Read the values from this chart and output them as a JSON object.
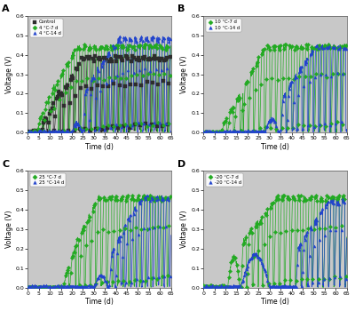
{
  "panels": [
    {
      "label": "A",
      "legend": [
        "Control",
        "4 °C-7 d",
        "4 °C-14 d"
      ],
      "colors": [
        "#2d2d2d",
        "#22aa22",
        "#2244cc"
      ],
      "markers": [
        "s",
        "D",
        "^"
      ]
    },
    {
      "label": "B",
      "legend": [
        "10 °C-7 d",
        "10 °C-14 d"
      ],
      "colors": [
        "#22aa22",
        "#2244cc"
      ],
      "markers": [
        "D",
        "^"
      ]
    },
    {
      "label": "C",
      "legend": [
        "25 °C-7 d",
        "25 °C-14 d"
      ],
      "colors": [
        "#22aa22",
        "#2244cc"
      ],
      "markers": [
        "D",
        "^"
      ]
    },
    {
      "label": "D",
      "legend": [
        "-20 °C-7 d",
        "-20 °C-14 d"
      ],
      "colors": [
        "#22aa22",
        "#2244cc"
      ],
      "markers": [
        "D",
        "^"
      ]
    }
  ],
  "xlim": [
    0,
    65
  ],
  "ylim": [
    0.0,
    0.6
  ],
  "xticks": [
    0,
    5,
    10,
    15,
    20,
    25,
    30,
    35,
    40,
    45,
    50,
    55,
    60,
    65
  ],
  "yticks": [
    0.0,
    0.1,
    0.2,
    0.3,
    0.4,
    0.5,
    0.6
  ],
  "xlabel": "Time (d)",
  "ylabel": "Voltage (V)",
  "bg_color": "#c8c8c8",
  "markersize": 2.2,
  "linewidth": 0.5
}
